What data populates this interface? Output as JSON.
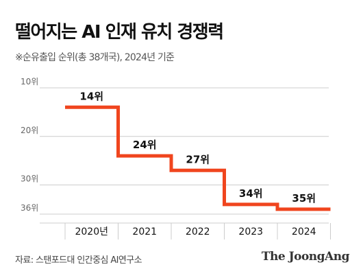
{
  "title": "떨어지는 AI 인재 유치 경쟁력",
  "subtitle": "※순유출입 순위(총 38개국), 2024년 기준",
  "source": "자료: 스탠포드대 인간중심 AI연구소",
  "brand": "The JoongAng",
  "colors": {
    "line": "#f0451e",
    "axis": "#cccccc",
    "text": "#111111",
    "muted": "#666666"
  },
  "chart_data": {
    "type": "line",
    "step": true,
    "inverted_y": true,
    "categories": [
      "2020년",
      "2021",
      "2022",
      "2023",
      "2024"
    ],
    "values": [
      14,
      24,
      27,
      34,
      35
    ],
    "value_labels": [
      "14위",
      "24위",
      "27위",
      "34위",
      "35위"
    ],
    "ytick_labels": [
      "10위",
      "20위",
      "30위",
      "36위"
    ],
    "ytick_values": [
      10,
      20,
      30,
      36
    ],
    "ylim": [
      10,
      36
    ],
    "grid": true
  }
}
